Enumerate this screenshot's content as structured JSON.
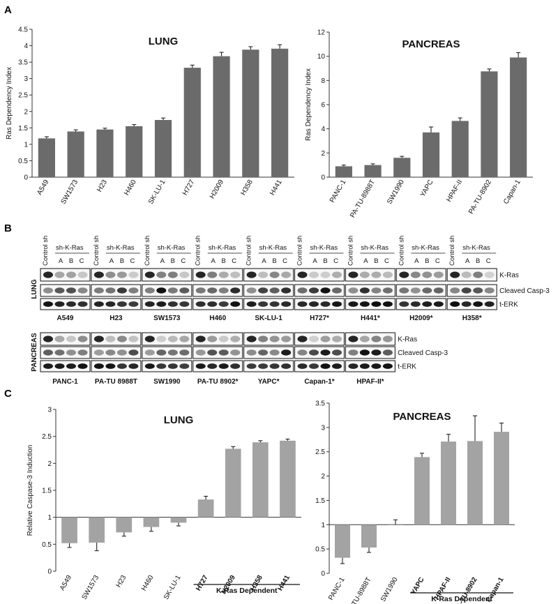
{
  "panels": {
    "a": "A",
    "b": "B",
    "c": "C"
  },
  "chart_data": [
    {
      "id": "A-lung",
      "type": "bar",
      "title": "LUNG",
      "ylabel": "Ras Dependency Index",
      "xlabel": "",
      "ylim": [
        0,
        4.5
      ],
      "yticks": [
        "0",
        "0.5",
        "1",
        "1.5",
        "2",
        "2.5",
        "3",
        "3.5",
        "4",
        "4.5"
      ],
      "ytick_values": [
        0,
        0.5,
        1,
        1.5,
        2,
        2.5,
        3,
        3.5,
        4,
        4.5
      ],
      "categories": [
        "A549",
        "SW1573",
        "H23",
        "H460",
        "SK-LU-1",
        "H727",
        "H2009",
        "H358",
        "H441"
      ],
      "values": [
        1.18,
        1.39,
        1.45,
        1.55,
        1.74,
        3.33,
        3.68,
        3.88,
        3.91
      ],
      "errors": [
        0.05,
        0.05,
        0.04,
        0.05,
        0.06,
        0.08,
        0.12,
        0.09,
        0.12
      ],
      "bar_color": "#6b6b6b",
      "grid": false
    },
    {
      "id": "A-pancreas",
      "type": "bar",
      "title": "PANCREAS",
      "ylabel": "Ras Dependency Index",
      "xlabel": "",
      "ylim": [
        0,
        12
      ],
      "yticks": [
        "0",
        "2",
        "4",
        "6",
        "8",
        "10",
        "12"
      ],
      "ytick_values": [
        0,
        2,
        4,
        6,
        8,
        10,
        12
      ],
      "categories": [
        "PANC-1",
        "PA-TU-8988T",
        "SW1990",
        "YAPC",
        "HPAF-II",
        "PA-TU-8902",
        "Capan-1"
      ],
      "values": [
        0.9,
        1.0,
        1.6,
        3.7,
        4.65,
        8.75,
        9.9
      ],
      "errors": [
        0.1,
        0.1,
        0.12,
        0.45,
        0.25,
        0.2,
        0.4
      ],
      "bar_color": "#6b6b6b",
      "grid": false
    },
    {
      "id": "C-lung",
      "type": "bar",
      "title": "LUNG",
      "ylabel": "Relative Caspase-3 Induction",
      "xlabel": "",
      "ylim": [
        0,
        3
      ],
      "baseline": 1,
      "yticks": [
        "0",
        "0.5",
        "1",
        "1.5",
        "2",
        "2.5",
        "3"
      ],
      "ytick_values": [
        0,
        0.5,
        1,
        1.5,
        2,
        2.5,
        3
      ],
      "categories": [
        "A549",
        "SW1573",
        "H23",
        "H460",
        "SK-LU-1",
        "H727",
        "H2009",
        "H358",
        "H441"
      ],
      "bold_categories": [
        "H727",
        "H2009",
        "H358",
        "H441"
      ],
      "values": [
        0.52,
        0.53,
        0.72,
        0.82,
        0.9,
        1.33,
        2.27,
        2.39,
        2.42
      ],
      "errors": [
        0.08,
        0.15,
        0.07,
        0.08,
        0.06,
        0.06,
        0.04,
        0.03,
        0.03
      ],
      "bar_color": "#a3a3a3",
      "grid": false,
      "group_bracket": {
        "label": "K-Ras Dependent",
        "from": "H727",
        "to": "H441"
      }
    },
    {
      "id": "C-pancreas",
      "type": "bar",
      "title": "PANCREAS",
      "ylabel": "",
      "xlabel": "",
      "ylim": [
        0,
        3.5
      ],
      "baseline": 1,
      "yticks": [
        "0",
        "0.5",
        "1",
        "1.5",
        "2",
        "2.5",
        "3",
        "3.5"
      ],
      "ytick_values": [
        0,
        0.5,
        1,
        1.5,
        2,
        2.5,
        3,
        3.5
      ],
      "categories": [
        "PANC-1",
        "PA-TU-8988T",
        "SW1990",
        "YAPC",
        "HPAF-II",
        "PA-TU-8902",
        "Capan-1"
      ],
      "bold_categories": [
        "YAPC",
        "HPAF-II",
        "PA-TU-8902",
        "Capan-1"
      ],
      "values": [
        0.32,
        0.53,
        1.0,
        2.39,
        2.71,
        2.72,
        2.91
      ],
      "errors": [
        0.12,
        0.1,
        0.1,
        0.08,
        0.15,
        0.52,
        0.18
      ],
      "bar_color": "#a3a3a3",
      "grid": false,
      "group_bracket": {
        "label": "K-Ras Dependent",
        "from": "YAPC",
        "to": "Capan-1"
      }
    }
  ],
  "western_blot": {
    "column_header": "Control sh",
    "group_header": "sh-K-Ras",
    "lane_labels": [
      "A",
      "B",
      "C"
    ],
    "row_groups": [
      {
        "tissue": "LUNG",
        "markers": [
          "K-Ras",
          "Cleaved Casp-3",
          "t-ERK"
        ],
        "cell_lines": [
          "A549",
          "H23",
          "SW1573",
          "H460",
          "SK-LU-1",
          "H727*",
          "H441*",
          "H2009*",
          "H358*"
        ]
      },
      {
        "tissue": "PANCREAS",
        "markers": [
          "K-Ras",
          "Cleaved Casp-3",
          "t-ERK"
        ],
        "cell_lines": [
          "PANC-1",
          "PA-TU 8988T",
          "SW1990",
          "PA-TU 8902*",
          "YAPC*",
          "Capan-1*",
          "HPAF-II*"
        ]
      }
    ]
  }
}
